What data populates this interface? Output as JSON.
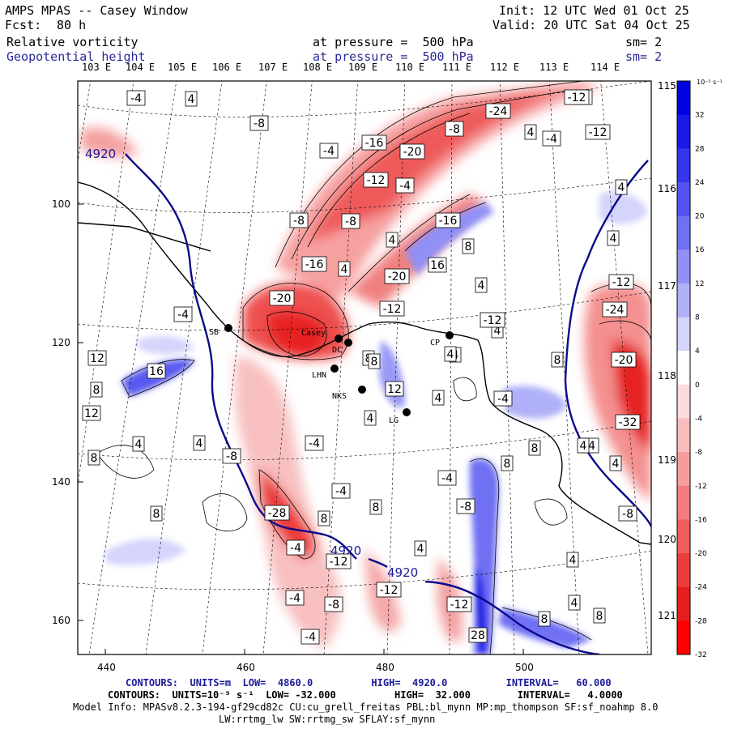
{
  "header": {
    "title": "AMPS MPAS -- Casey Window",
    "fcst_label": "Fcst:",
    "fcst_value": "80 h",
    "init": "Init: 12 UTC Wed 01 Oct 25",
    "valid": "Valid: 20 UTC Sat 04 Oct 25",
    "field1_name": "Relative vorticity",
    "field1_level": "at pressure =  500 hPa",
    "field1_sm": "sm= 2",
    "field2_name": "Geopotential height",
    "field2_level": "at pressure =  500 hPa",
    "field2_sm": "sm= 2"
  },
  "top_lon_labels": [
    "103 E",
    "104 E",
    "105 E",
    "106 E",
    "107 E",
    "108 E",
    "109 E",
    "110 E",
    "111 E",
    "112 E",
    "113 E",
    "114 E"
  ],
  "right_lon_labels": [
    "115 E",
    "116 E",
    "117 E",
    "118 E",
    "119 E",
    "120 E",
    "121 E"
  ],
  "x_ticks": [
    "440",
    "460",
    "480",
    "500"
  ],
  "y_ticks": [
    "100",
    "120",
    "140",
    "160"
  ],
  "colorbar": {
    "unit": "10⁻⁵ s⁻¹",
    "labels": [
      "32",
      "28",
      "24",
      "20",
      "16",
      "12",
      "8",
      "4",
      "0",
      "-4",
      "-8",
      "-12",
      "-16",
      "-20",
      "-24",
      "-28",
      "-32"
    ],
    "colors": [
      "#0000e0",
      "#1a1ae6",
      "#3535eb",
      "#5252f0",
      "#7070f3",
      "#9090f6",
      "#b0b0f9",
      "#d4d4fc",
      "#ffffff",
      "#fcdcdc",
      "#f9bcbc",
      "#f69c9c",
      "#f37c7c",
      "#f05c5c",
      "#eb3c3c",
      "#e61e1e",
      "#ff0000"
    ]
  },
  "stations": [
    {
      "label": "SB"
    },
    {
      "label": "Casey"
    },
    {
      "label": "DC"
    },
    {
      "label": "CP"
    },
    {
      "label": "LHN"
    },
    {
      "label": "NKS"
    },
    {
      "label": "LG"
    }
  ],
  "height_labels": [
    "4920",
    "4920",
    "4920"
  ],
  "vorticity_labels": [
    "-4",
    "4",
    "-8",
    "-8",
    "4",
    "-24",
    "-12",
    "-8",
    "-20",
    "-16",
    "-12",
    "4",
    "4",
    "-4",
    "-4",
    "-12",
    "-4",
    "4",
    "-8",
    "-8",
    "-16",
    "4",
    "8",
    "4",
    "-16",
    "4",
    "-20",
    "16",
    "-4",
    "8",
    "12",
    "4",
    "-20",
    "-12",
    "-12",
    "-24",
    "4",
    "8",
    "-12",
    "16",
    "4",
    "8",
    "-20",
    "8",
    "12",
    "4",
    "-4",
    "-32",
    "4",
    "-4",
    "12",
    "8",
    "4",
    "-8",
    "8",
    "4",
    "-4",
    "8",
    "-8",
    "8",
    "8",
    "-8",
    "-4",
    "-28",
    "8",
    "-4",
    "-4",
    "-12",
    "4",
    "4",
    "-12",
    "-12",
    "4",
    "8",
    "-4",
    "4",
    "-4",
    "-8",
    "28",
    "8"
  ],
  "footer": {
    "contours1": "CONTOURS:  UNITS=m  LOW=  4860.0          HIGH=  4920.0          INTERVAL=   60.000",
    "contours2": "CONTOURS:  UNITS=10⁻⁵ s⁻¹  LOW= -32.000          HIGH=  32.000        INTERVAL=   4.0000",
    "model_info": "Model Info: MPASv8.2.3-194-gf29cd82c CU:cu_grell_freitas PBL:bl_mynn MP:mp_thompson SF:sf_noahmp 8.0",
    "model_info2": "LW:rrtmg_lw SW:rrtmg_sw SFLAY:sf_mynn"
  }
}
